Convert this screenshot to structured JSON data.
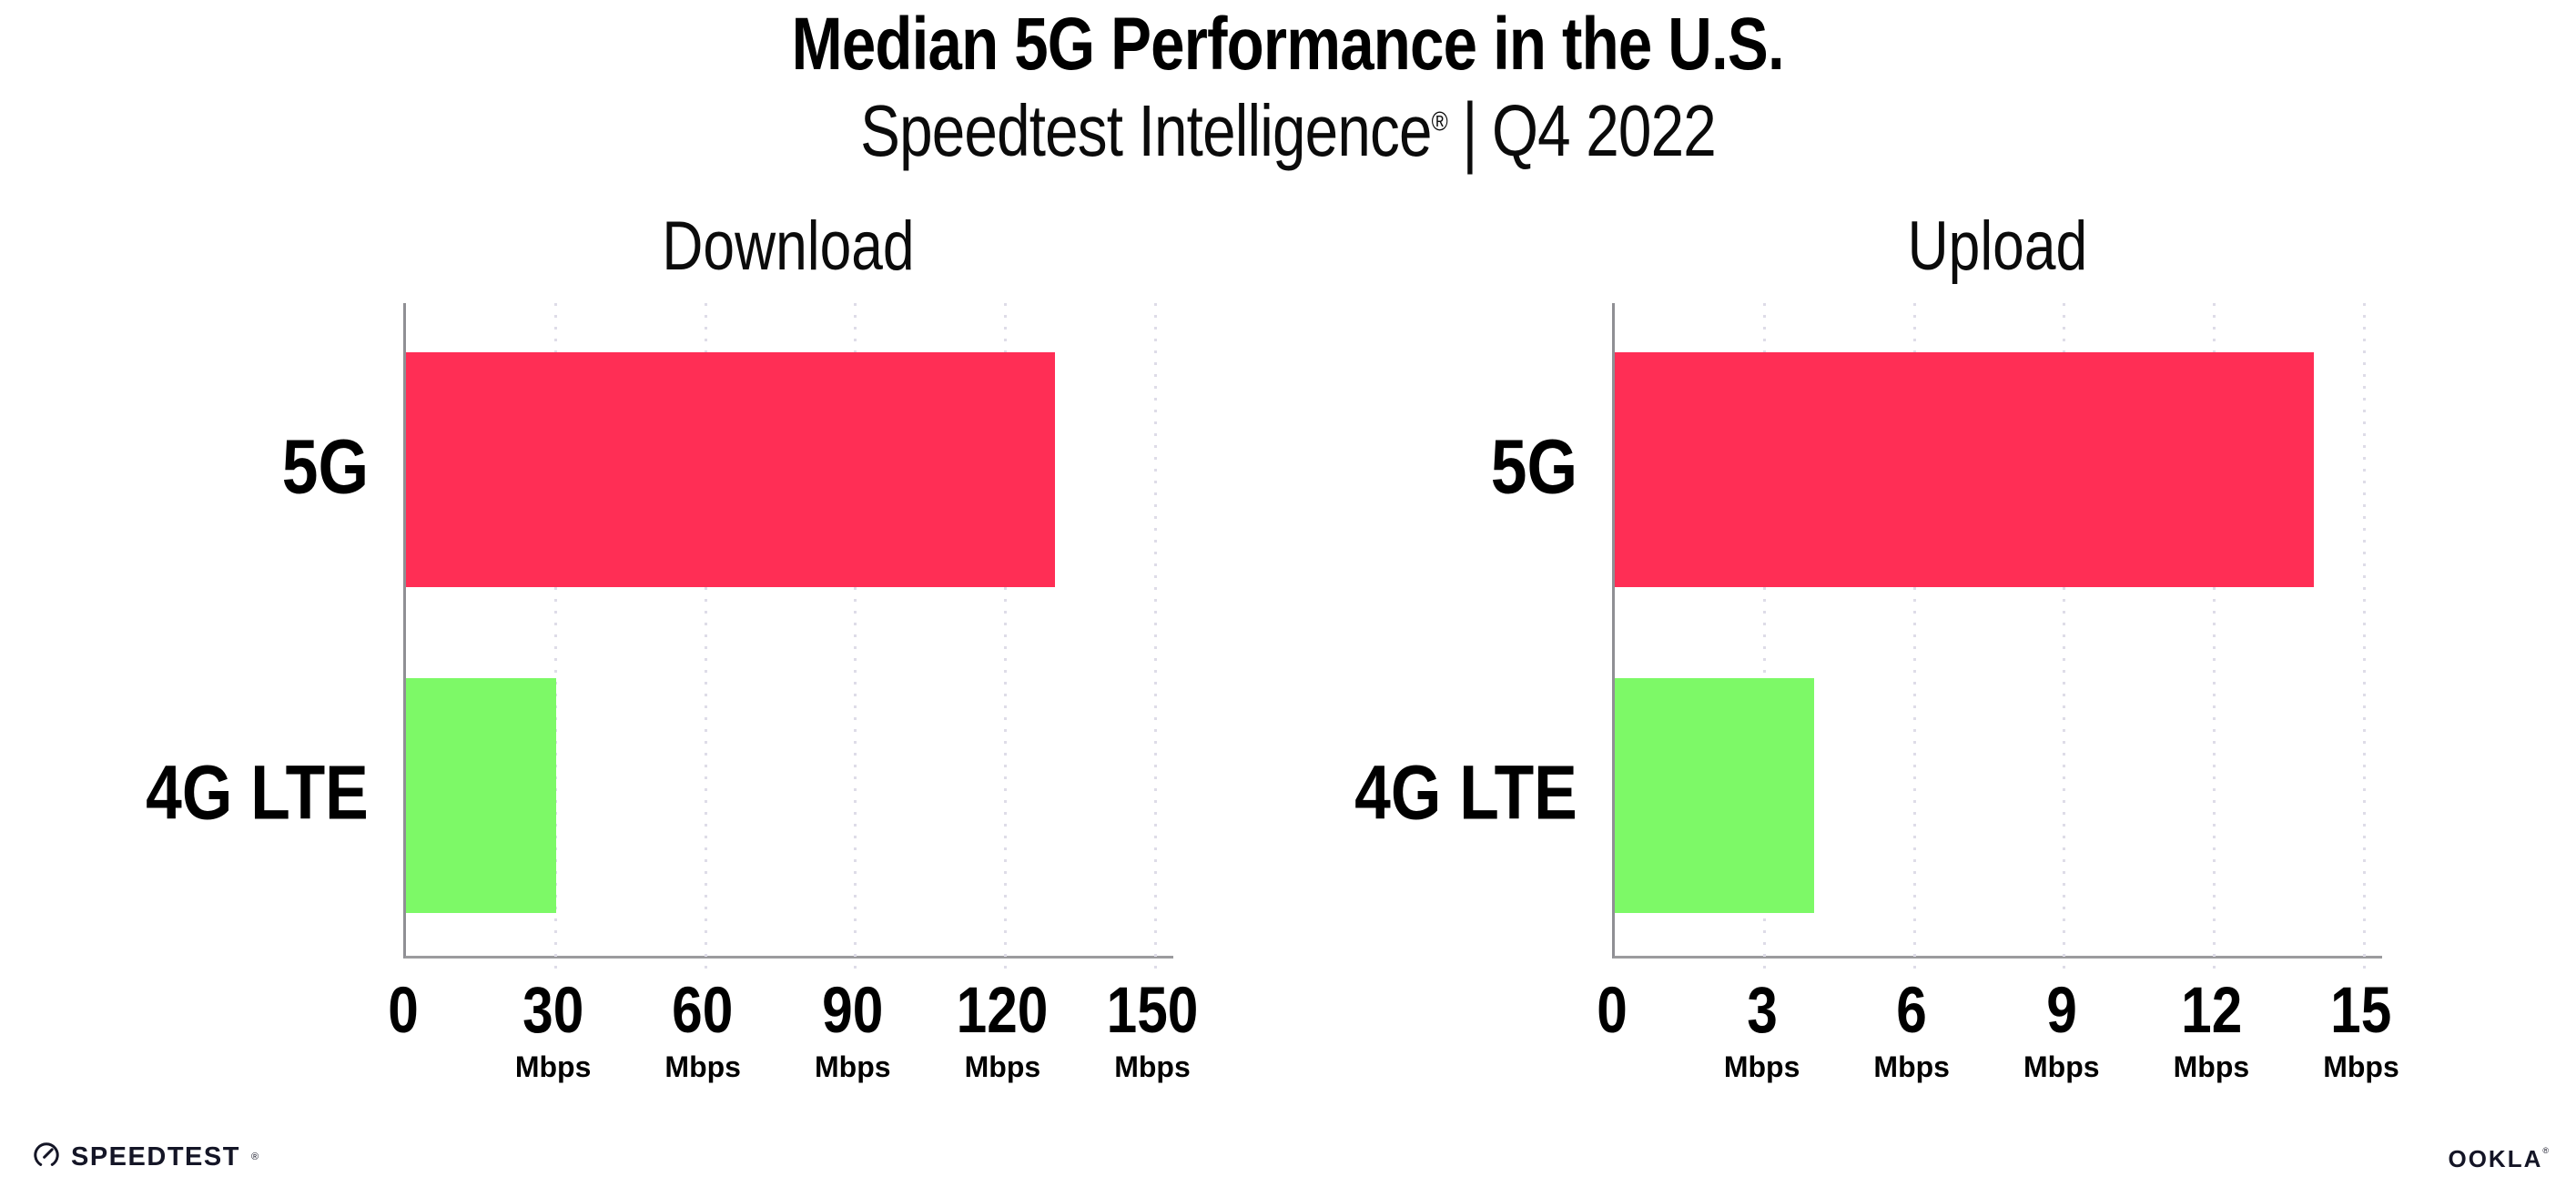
{
  "header": {
    "title": "Median 5G Performance in the U.S.",
    "subtitle_brand": "Speedtest Intelligence",
    "subtitle_reg": "®",
    "subtitle_separator": "|",
    "subtitle_period": "Q4 2022"
  },
  "chart_data": [
    {
      "type": "bar",
      "orientation": "horizontal",
      "title": "Download",
      "categories": [
        "5G",
        "4G LTE"
      ],
      "values": [
        130,
        30
      ],
      "unit": "Mbps",
      "xlim": [
        0,
        150
      ],
      "xticks": [
        0,
        30,
        60,
        90,
        120,
        150
      ],
      "bar_colors": [
        "#FF2E55",
        "#7DF967"
      ],
      "grid": "dotted-vertical",
      "legend": "none"
    },
    {
      "type": "bar",
      "orientation": "horizontal",
      "title": "Upload",
      "categories": [
        "5G",
        "4G LTE"
      ],
      "values": [
        14,
        4
      ],
      "unit": "Mbps",
      "xlim": [
        0,
        15
      ],
      "xticks": [
        0,
        3,
        6,
        9,
        12,
        15
      ],
      "bar_colors": [
        "#FF2E55",
        "#7DF967"
      ],
      "grid": "dotted-vertical",
      "legend": "none"
    }
  ],
  "footer": {
    "speedtest_label": "SPEEDTEST",
    "speedtest_reg": "®",
    "ookla_label": "OOKLA",
    "ookla_reg": "®"
  },
  "colors": {
    "bar_5g": "#FF2E55",
    "bar_4g_lte": "#7DF967",
    "axis": "#8F8F94",
    "gridline": "#DEDCE8",
    "text": "#000000",
    "logo_text": "#141526"
  },
  "icons": {
    "speedtest_gauge_icon": "gauge-circle-with-needle"
  }
}
